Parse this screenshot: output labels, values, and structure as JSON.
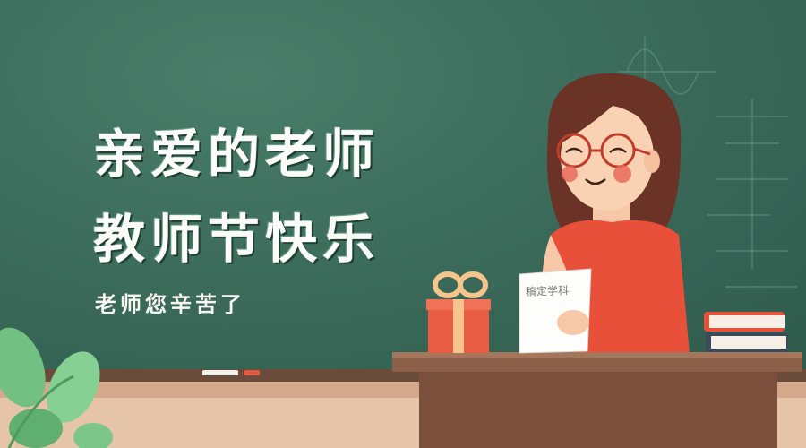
{
  "banner": {
    "title_line1": "亲爱的老师",
    "title_line2": "教师节快乐",
    "subtitle": "老师您辛苦了"
  },
  "paper": {
    "label": "稿定学科"
  },
  "colors": {
    "chalkboard": "#3c6c5c",
    "dress": "#e8503a",
    "desk": "#8c6048",
    "gift": "#ea5d45",
    "leaf": "#72c183"
  }
}
